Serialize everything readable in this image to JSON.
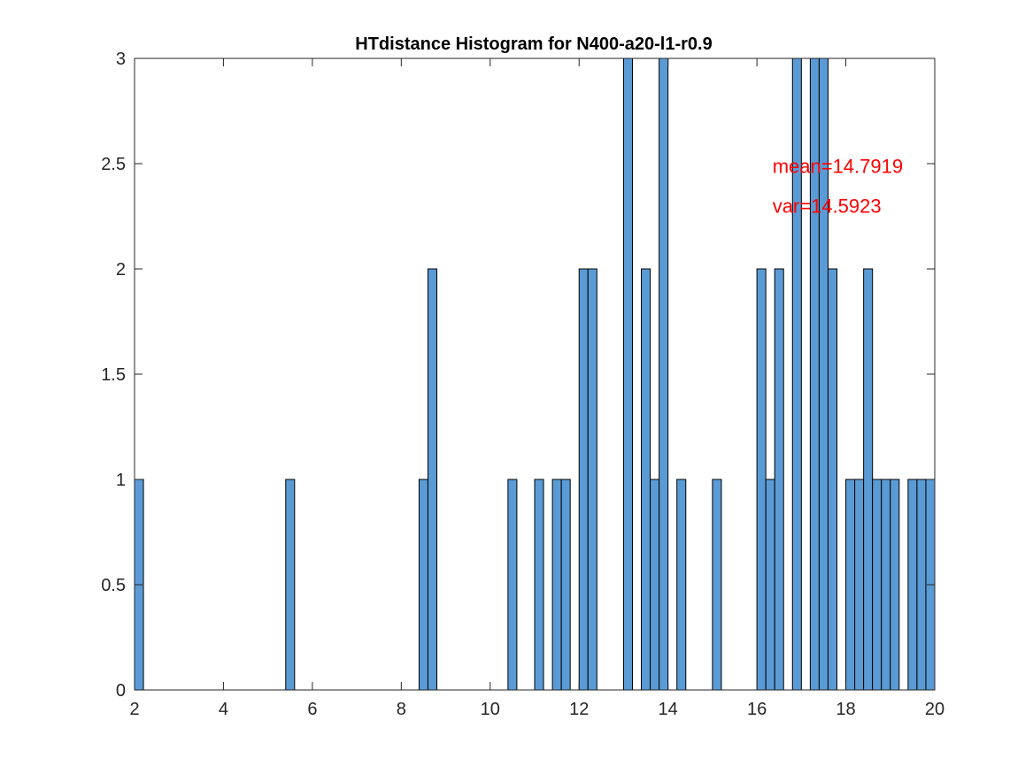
{
  "chart_data": {
    "type": "bar",
    "title": "HTdistance Histogram for N400-a20-l1-r0.9",
    "xlabel": "",
    "ylabel": "",
    "xlim": [
      2,
      20
    ],
    "ylim": [
      0,
      3
    ],
    "bin_width": 0.2,
    "x_ticks": [
      "2",
      "4",
      "6",
      "8",
      "10",
      "12",
      "14",
      "16",
      "18",
      "20"
    ],
    "x_tick_values": [
      2,
      4,
      6,
      8,
      10,
      12,
      14,
      16,
      18,
      20
    ],
    "y_ticks": [
      "0",
      "0.5",
      "1",
      "1.5",
      "2",
      "2.5",
      "3"
    ],
    "y_tick_values": [
      0,
      0.5,
      1,
      1.5,
      2,
      2.5,
      3
    ],
    "bins": [
      {
        "x": 2.0,
        "value": 1
      },
      {
        "x": 5.4,
        "value": 1
      },
      {
        "x": 8.4,
        "value": 1
      },
      {
        "x": 8.6,
        "value": 2
      },
      {
        "x": 10.4,
        "value": 1
      },
      {
        "x": 11.0,
        "value": 1
      },
      {
        "x": 11.4,
        "value": 1
      },
      {
        "x": 11.6,
        "value": 1
      },
      {
        "x": 12.0,
        "value": 2
      },
      {
        "x": 12.2,
        "value": 2
      },
      {
        "x": 13.0,
        "value": 3
      },
      {
        "x": 13.4,
        "value": 2
      },
      {
        "x": 13.6,
        "value": 1
      },
      {
        "x": 13.8,
        "value": 3
      },
      {
        "x": 14.2,
        "value": 1
      },
      {
        "x": 15.0,
        "value": 1
      },
      {
        "x": 16.0,
        "value": 2
      },
      {
        "x": 16.2,
        "value": 1
      },
      {
        "x": 16.4,
        "value": 2
      },
      {
        "x": 16.8,
        "value": 3
      },
      {
        "x": 17.2,
        "value": 3
      },
      {
        "x": 17.4,
        "value": 3
      },
      {
        "x": 17.6,
        "value": 2
      },
      {
        "x": 18.0,
        "value": 1
      },
      {
        "x": 18.2,
        "value": 1
      },
      {
        "x": 18.4,
        "value": 2
      },
      {
        "x": 18.6,
        "value": 1
      },
      {
        "x": 18.8,
        "value": 1
      },
      {
        "x": 19.0,
        "value": 1
      },
      {
        "x": 19.4,
        "value": 1
      },
      {
        "x": 19.6,
        "value": 1
      },
      {
        "x": 19.8,
        "value": 1
      }
    ],
    "annotations": [
      {
        "text": "mean=14.7919",
        "x": 16.35,
        "y": 2.49,
        "color": "#ff0000"
      },
      {
        "text": "var=14.5923",
        "x": 16.35,
        "y": 2.3,
        "color": "#ff0000"
      }
    ],
    "grid": false,
    "bar_color": "#5b9bd5",
    "bar_edge_color": "#000000"
  }
}
